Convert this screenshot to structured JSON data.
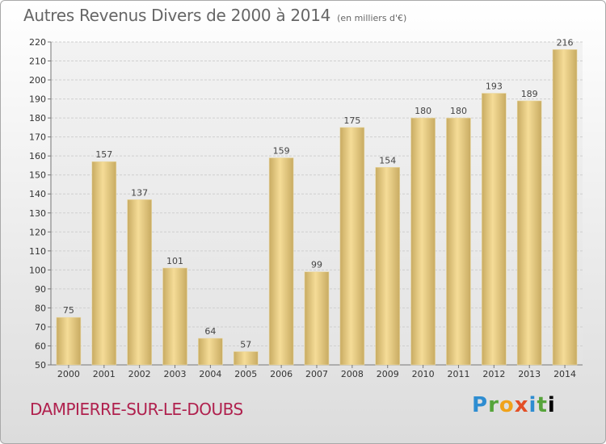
{
  "header": {
    "title": "Autres Revenus Divers de 2000 à 2014",
    "unit": "(en milliers d'€)"
  },
  "footer": {
    "place": "DAMPIERRE-SUR-LE-DOUBS",
    "logo": "Proxiti"
  },
  "colors": {
    "bar_light": "#f5dc97",
    "bar_dark": "#c8ab62",
    "place_text": "#b0214e"
  },
  "chart_data": {
    "type": "bar",
    "title": "Autres Revenus Divers de 2000 à 2014",
    "ylabel": "",
    "xlabel": "",
    "categories": [
      "2000",
      "2001",
      "2002",
      "2003",
      "2004",
      "2005",
      "2006",
      "2007",
      "2008",
      "2009",
      "2010",
      "2011",
      "2012",
      "2013",
      "2014"
    ],
    "values": [
      75,
      157,
      137,
      101,
      64,
      57,
      159,
      99,
      175,
      154,
      180,
      180,
      193,
      189,
      216
    ],
    "ylim": [
      50,
      220
    ],
    "yticks": [
      50,
      60,
      70,
      80,
      90,
      100,
      110,
      120,
      130,
      140,
      150,
      160,
      170,
      180,
      190,
      200,
      210,
      220
    ],
    "grid": true
  }
}
